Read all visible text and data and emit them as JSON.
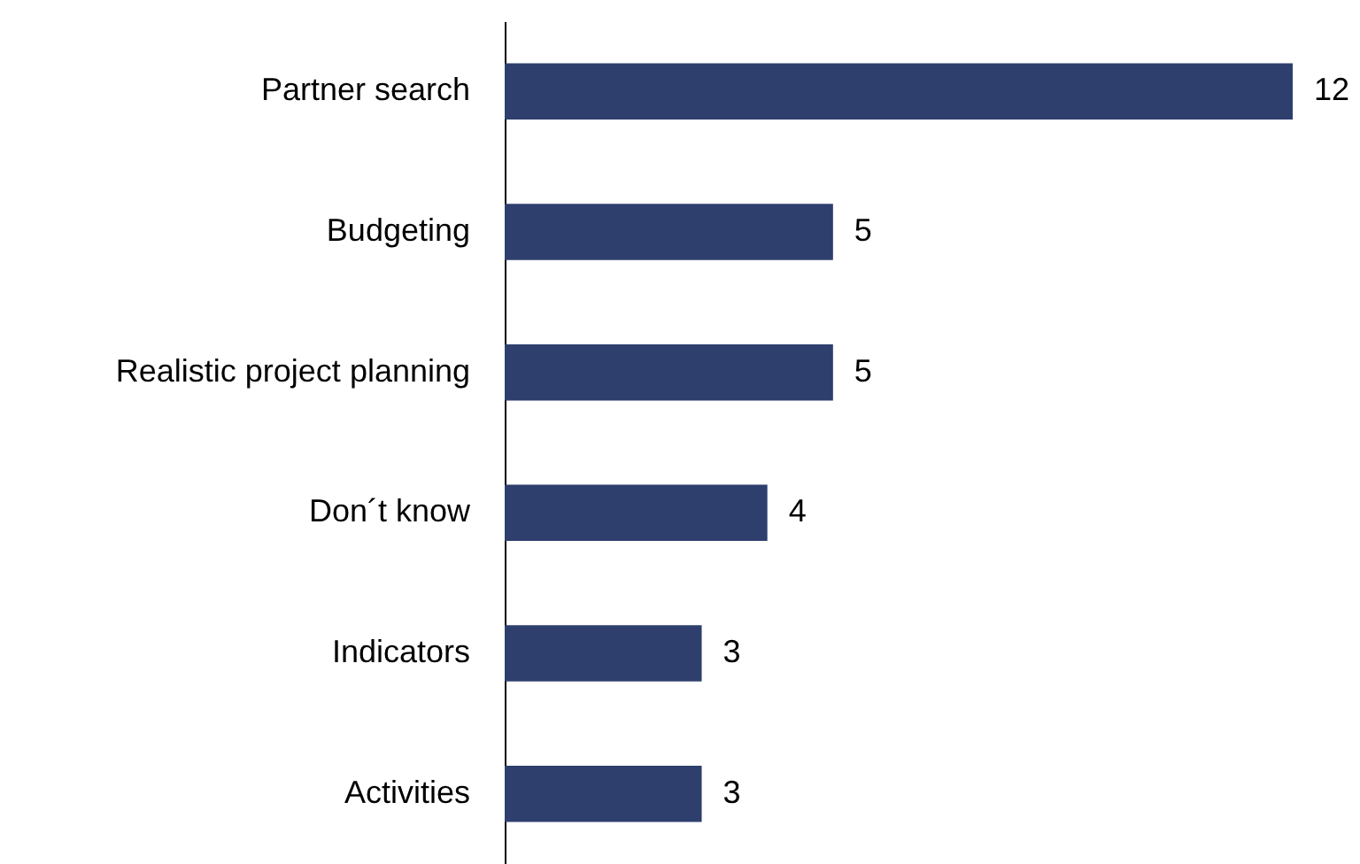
{
  "chart_data": {
    "type": "bar",
    "orientation": "horizontal",
    "data_labels": true,
    "categories": [
      "Partner search",
      "Budgeting",
      "Realistic project planning",
      "Don´t know",
      "Indicators",
      "Activities"
    ],
    "values": [
      12,
      5,
      5,
      4,
      3,
      3
    ],
    "color": "#2e3f6e"
  }
}
